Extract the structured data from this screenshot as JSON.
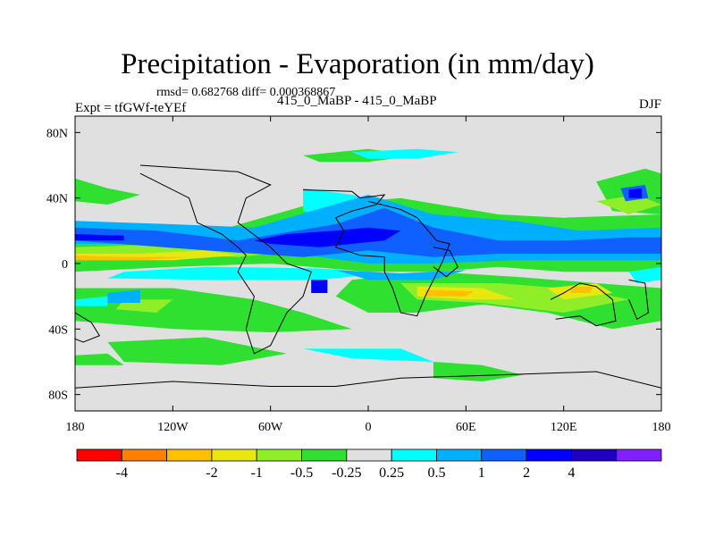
{
  "chart_data": {
    "type": "heatmap",
    "title": "Precipitation - Evaporation (in mm/day)",
    "stats": "rmsd= 0.682768 diff= 0.000368867",
    "left_label": "Expt = tfGWf-teYEf",
    "center_label": "415_0_MaBP - 415_0_MaBP",
    "right_label": "DJF",
    "xlim": [
      -180,
      180
    ],
    "ylim": [
      -90,
      90
    ],
    "x_ticks": [
      {
        "value": -180,
        "label": "180"
      },
      {
        "value": -120,
        "label": "120W"
      },
      {
        "value": -60,
        "label": "60W"
      },
      {
        "value": 0,
        "label": "0"
      },
      {
        "value": 60,
        "label": "60E"
      },
      {
        "value": 120,
        "label": "120E"
      },
      {
        "value": 180,
        "label": "180"
      }
    ],
    "y_ticks": [
      {
        "value": 80,
        "label": "80N"
      },
      {
        "value": 40,
        "label": "40N"
      },
      {
        "value": 0,
        "label": "0"
      },
      {
        "value": -40,
        "label": "40S"
      },
      {
        "value": -80,
        "label": "80S"
      }
    ],
    "colorbar": {
      "colors": [
        "#ff0000",
        "#ff8000",
        "#ffc000",
        "#e8e810",
        "#90ee28",
        "#30e030",
        "#e0e0e0",
        "#00ffff",
        "#00b0ff",
        "#1060ff",
        "#0000ff",
        "#2000c0",
        "#8020ff"
      ],
      "tick_labels": [
        "-4",
        "-2",
        "-1",
        "-0.5",
        "-0.25",
        "0.25",
        "0.5",
        "1",
        "2",
        "4"
      ],
      "tick_bounds": [
        1,
        3,
        4,
        5,
        6,
        7,
        8,
        9,
        10,
        11
      ]
    },
    "background_color": "#e0e0e0",
    "regions": [
      {
        "level": 5,
        "points": [
          [
            -180,
            15
          ],
          [
            -100,
            18
          ],
          [
            -40,
            35
          ],
          [
            20,
            40
          ],
          [
            80,
            30
          ],
          [
            120,
            28
          ],
          [
            180,
            30
          ],
          [
            180,
            -5
          ],
          [
            120,
            -5
          ],
          [
            80,
            -2
          ],
          [
            40,
            -5
          ],
          [
            0,
            -5
          ],
          [
            -60,
            0
          ],
          [
            -120,
            -2
          ],
          [
            -180,
            -5
          ]
        ]
      },
      {
        "level": 5,
        "points": [
          [
            -180,
            52
          ],
          [
            -160,
            46
          ],
          [
            -140,
            42
          ],
          [
            -160,
            36
          ],
          [
            -180,
            38
          ]
        ]
      },
      {
        "level": 5,
        "points": [
          [
            -10,
            -10
          ],
          [
            40,
            -5
          ],
          [
            90,
            -8
          ],
          [
            140,
            -12
          ],
          [
            180,
            -15
          ],
          [
            180,
            -35
          ],
          [
            150,
            -40
          ],
          [
            110,
            -30
          ],
          [
            70,
            -25
          ],
          [
            30,
            -30
          ],
          [
            0,
            -30
          ],
          [
            -20,
            -20
          ]
        ]
      },
      {
        "level": 5,
        "points": [
          [
            -180,
            -15
          ],
          [
            -120,
            -15
          ],
          [
            -70,
            -22
          ],
          [
            -40,
            -30
          ],
          [
            -10,
            -40
          ],
          [
            -60,
            -42
          ],
          [
            -120,
            -40
          ],
          [
            -180,
            -35
          ]
        ]
      },
      {
        "level": 5,
        "points": [
          [
            -160,
            -48
          ],
          [
            -100,
            -45
          ],
          [
            -50,
            -55
          ],
          [
            -90,
            -62
          ],
          [
            -150,
            -60
          ]
        ]
      },
      {
        "level": 5,
        "points": [
          [
            -40,
            66
          ],
          [
            0,
            70
          ],
          [
            30,
            66
          ],
          [
            0,
            62
          ],
          [
            -30,
            62
          ]
        ]
      },
      {
        "level": 5,
        "points": [
          [
            140,
            50
          ],
          [
            170,
            58
          ],
          [
            180,
            55
          ],
          [
            180,
            30
          ],
          [
            150,
            32
          ]
        ]
      },
      {
        "level": 5,
        "points": [
          [
            40,
            -60
          ],
          [
            70,
            -62
          ],
          [
            95,
            -68
          ],
          [
            70,
            -72
          ],
          [
            40,
            -70
          ]
        ]
      },
      {
        "level": 5,
        "points": [
          [
            -180,
            -56
          ],
          [
            -160,
            -55
          ],
          [
            -150,
            -62
          ],
          [
            -180,
            -62
          ]
        ]
      },
      {
        "level": 4,
        "points": [
          [
            -180,
            10
          ],
          [
            -120,
            12
          ],
          [
            -80,
            14
          ],
          [
            -40,
            8
          ],
          [
            -80,
            4
          ],
          [
            -140,
            6
          ],
          [
            -180,
            5
          ]
        ]
      },
      {
        "level": 4,
        "points": [
          [
            20,
            -12
          ],
          [
            80,
            -12
          ],
          [
            130,
            -16
          ],
          [
            160,
            -22
          ],
          [
            120,
            -30
          ],
          [
            70,
            -24
          ],
          [
            30,
            -22
          ]
        ]
      },
      {
        "level": 4,
        "points": [
          [
            140,
            38
          ],
          [
            165,
            42
          ],
          [
            180,
            36
          ],
          [
            160,
            30
          ]
        ]
      },
      {
        "level": 4,
        "points": [
          [
            -150,
            -22
          ],
          [
            -120,
            -22
          ],
          [
            -130,
            -30
          ],
          [
            -155,
            -28
          ]
        ]
      },
      {
        "level": 3,
        "points": [
          [
            -180,
            6
          ],
          [
            -140,
            6
          ],
          [
            -100,
            8
          ],
          [
            -80,
            5
          ],
          [
            -120,
            2
          ],
          [
            -180,
            2
          ]
        ]
      },
      {
        "level": 3,
        "points": [
          [
            30,
            -14
          ],
          [
            70,
            -15
          ],
          [
            90,
            -22
          ],
          [
            60,
            -22
          ],
          [
            30,
            -20
          ]
        ]
      },
      {
        "level": 3,
        "points": [
          [
            110,
            -15
          ],
          [
            140,
            -12
          ],
          [
            150,
            -18
          ],
          [
            120,
            -22
          ]
        ]
      },
      {
        "level": 2,
        "points": [
          [
            -180,
            5
          ],
          [
            -150,
            4
          ],
          [
            -110,
            4
          ],
          [
            -140,
            2
          ],
          [
            -180,
            2
          ]
        ]
      },
      {
        "level": 2,
        "points": [
          [
            35,
            -16
          ],
          [
            65,
            -17
          ],
          [
            60,
            -20
          ],
          [
            35,
            -20
          ]
        ]
      },
      {
        "level": 2,
        "points": [
          [
            125,
            -14
          ],
          [
            138,
            -14
          ],
          [
            136,
            -18
          ],
          [
            124,
            -18
          ]
        ]
      },
      {
        "level": 7,
        "points": [
          [
            -150,
            -5
          ],
          [
            -100,
            -2
          ],
          [
            -30,
            -3
          ],
          [
            10,
            -6
          ],
          [
            -30,
            -10
          ],
          [
            -100,
            -10
          ],
          [
            -160,
            -9
          ]
        ]
      },
      {
        "level": 7,
        "points": [
          [
            -10,
            68
          ],
          [
            30,
            70
          ],
          [
            55,
            68
          ],
          [
            30,
            64
          ],
          [
            0,
            64
          ]
        ]
      },
      {
        "level": 7,
        "points": [
          [
            -40,
            46
          ],
          [
            -10,
            42
          ],
          [
            20,
            34
          ],
          [
            -10,
            28
          ],
          [
            -40,
            32
          ]
        ]
      },
      {
        "level": 7,
        "points": [
          [
            -180,
            -22
          ],
          [
            -160,
            -20
          ],
          [
            -160,
            -26
          ],
          [
            -180,
            -26
          ]
        ]
      },
      {
        "level": 7,
        "points": [
          [
            -40,
            -52
          ],
          [
            20,
            -52
          ],
          [
            40,
            -60
          ],
          [
            -10,
            -58
          ]
        ]
      },
      {
        "level": 7,
        "points": [
          [
            160,
            -5
          ],
          [
            180,
            -2
          ],
          [
            180,
            -10
          ],
          [
            165,
            -12
          ]
        ]
      },
      {
        "level": 8,
        "points": [
          [
            -180,
            26
          ],
          [
            -120,
            24
          ],
          [
            -70,
            22
          ],
          [
            0,
            42
          ],
          [
            40,
            30
          ],
          [
            90,
            26
          ],
          [
            130,
            20
          ],
          [
            180,
            22
          ],
          [
            180,
            2
          ],
          [
            130,
            2
          ],
          [
            90,
            2
          ],
          [
            40,
            0
          ],
          [
            0,
            0
          ],
          [
            -60,
            8
          ],
          [
            -120,
            12
          ],
          [
            -180,
            12
          ]
        ]
      },
      {
        "level": 8,
        "points": [
          [
            -20,
            -4
          ],
          [
            20,
            -6
          ],
          [
            60,
            -4
          ],
          [
            40,
            -10
          ],
          [
            0,
            -10
          ]
        ]
      },
      {
        "level": 8,
        "points": [
          [
            -160,
            -18
          ],
          [
            -140,
            -16
          ],
          [
            -140,
            -24
          ],
          [
            -160,
            -24
          ]
        ]
      },
      {
        "level": 9,
        "points": [
          [
            -180,
            22
          ],
          [
            -130,
            20
          ],
          [
            -80,
            14
          ],
          [
            -20,
            24
          ],
          [
            10,
            34
          ],
          [
            40,
            22
          ],
          [
            80,
            14
          ],
          [
            120,
            14
          ],
          [
            160,
            16
          ],
          [
            180,
            16
          ],
          [
            180,
            6
          ],
          [
            130,
            6
          ],
          [
            80,
            6
          ],
          [
            40,
            4
          ],
          [
            0,
            8
          ],
          [
            -40,
            4
          ],
          [
            -100,
            8
          ],
          [
            -180,
            14
          ]
        ]
      },
      {
        "level": 9,
        "points": [
          [
            155,
            46
          ],
          [
            170,
            48
          ],
          [
            172,
            40
          ],
          [
            158,
            38
          ]
        ]
      },
      {
        "level": 10,
        "points": [
          [
            -70,
            14
          ],
          [
            -50,
            18
          ],
          [
            -20,
            20
          ],
          [
            0,
            22
          ],
          [
            20,
            20
          ],
          [
            10,
            14
          ],
          [
            -30,
            10
          ],
          [
            -60,
            12
          ]
        ]
      },
      {
        "level": 10,
        "points": [
          [
            -35,
            -10
          ],
          [
            -25,
            -10
          ],
          [
            -25,
            -18
          ],
          [
            -35,
            -18
          ]
        ]
      },
      {
        "level": 10,
        "points": [
          [
            160,
            45
          ],
          [
            168,
            46
          ],
          [
            168,
            40
          ],
          [
            160,
            40
          ]
        ]
      },
      {
        "level": 10,
        "points": [
          [
            -180,
            18
          ],
          [
            -150,
            17
          ],
          [
            -150,
            14
          ],
          [
            -180,
            14
          ]
        ]
      }
    ],
    "coastlines": [
      [
        [
          -40,
          45
        ],
        [
          -10,
          44
        ],
        [
          -5,
          40
        ],
        [
          10,
          42
        ],
        [
          5,
          36
        ],
        [
          -10,
          32
        ],
        [
          -20,
          28
        ],
        [
          -15,
          20
        ],
        [
          -20,
          10
        ],
        [
          -5,
          5
        ],
        [
          10,
          4
        ],
        [
          10,
          -5
        ],
        [
          15,
          -15
        ],
        [
          20,
          -30
        ],
        [
          30,
          -32
        ],
        [
          35,
          -20
        ],
        [
          40,
          -10
        ],
        [
          45,
          0
        ],
        [
          50,
          12
        ],
        [
          42,
          14
        ],
        [
          30,
          28
        ],
        [
          20,
          33
        ],
        [
          0,
          38
        ]
      ],
      [
        [
          -140,
          55
        ],
        [
          -110,
          40
        ],
        [
          -105,
          25
        ],
        [
          -90,
          18
        ],
        [
          -80,
          10
        ],
        [
          -75,
          5
        ],
        [
          -80,
          -5
        ],
        [
          -70,
          -20
        ],
        [
          -75,
          -40
        ],
        [
          -70,
          -55
        ],
        [
          -60,
          -50
        ],
        [
          -50,
          -30
        ],
        [
          -40,
          -20
        ],
        [
          -35,
          -5
        ],
        [
          -50,
          0
        ],
        [
          -60,
          10
        ],
        [
          -80,
          25
        ],
        [
          -75,
          40
        ],
        [
          -60,
          48
        ],
        [
          -80,
          56
        ],
        [
          -140,
          60
        ]
      ],
      [
        [
          112,
          -22
        ],
        [
          120,
          -18
        ],
        [
          130,
          -12
        ],
        [
          140,
          -14
        ],
        [
          150,
          -22
        ],
        [
          152,
          -35
        ],
        [
          140,
          -38
        ],
        [
          130,
          -32
        ],
        [
          115,
          -34
        ]
      ],
      [
        [
          -180,
          -76
        ],
        [
          -120,
          -72
        ],
        [
          -60,
          -75
        ],
        [
          -20,
          -75
        ],
        [
          20,
          -70
        ],
        [
          80,
          -68
        ],
        [
          140,
          -66
        ],
        [
          180,
          -76
        ]
      ],
      [
        [
          -180,
          -30
        ],
        [
          -170,
          -36
        ],
        [
          -165,
          -44
        ],
        [
          -175,
          -48
        ],
        [
          -180,
          -46
        ]
      ],
      [
        [
          160,
          -10
        ],
        [
          170,
          -12
        ],
        [
          172,
          -30
        ],
        [
          165,
          -34
        ],
        [
          160,
          -22
        ]
      ],
      [
        [
          40,
          10
        ],
        [
          50,
          8
        ],
        [
          55,
          -2
        ],
        [
          48,
          -8
        ],
        [
          40,
          -2
        ]
      ]
    ]
  }
}
